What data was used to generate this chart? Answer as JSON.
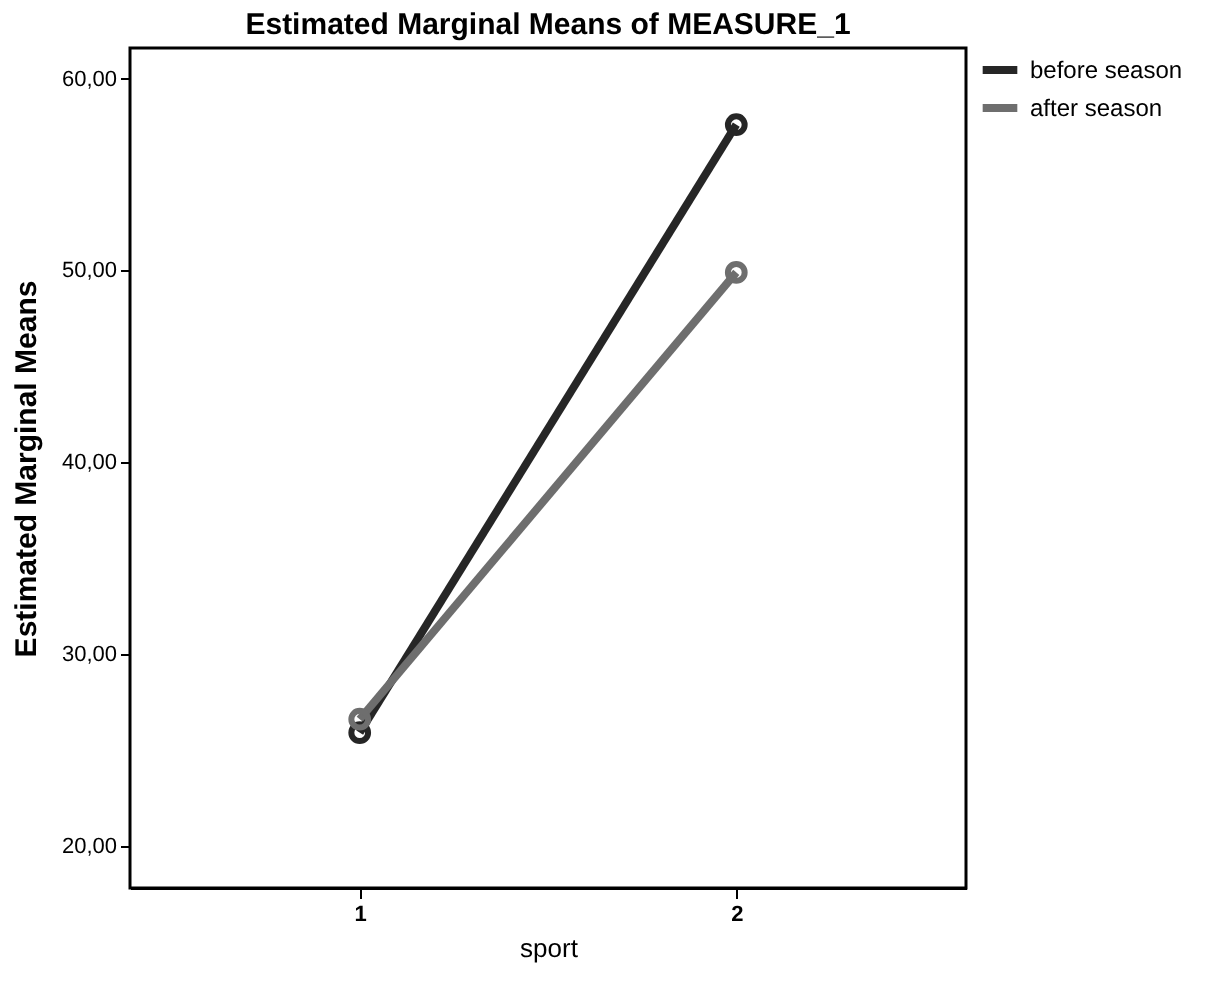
{
  "chart_data": {
    "type": "line",
    "title": "Estimated Marginal Means of MEASURE_1",
    "xlabel": "sport",
    "ylabel": "Estimated Marginal Means",
    "categories": [
      "1",
      "2"
    ],
    "series": [
      {
        "name": "before season",
        "color": "#262626",
        "values": [
          25.9,
          57.6
        ]
      },
      {
        "name": "after season",
        "color": "#6e6e6e",
        "values": [
          26.6,
          49.9
        ]
      }
    ],
    "ylim": [
      17.8,
      61.6
    ],
    "yticks": [
      {
        "value": 20,
        "label": "20,00"
      },
      {
        "value": 30,
        "label": "30,00"
      },
      {
        "value": 40,
        "label": "40,00"
      },
      {
        "value": 50,
        "label": "50,00"
      },
      {
        "value": 60,
        "label": "60,00"
      }
    ],
    "grid": false,
    "legend": "top right",
    "marker": "circle",
    "line_style": "solid"
  }
}
